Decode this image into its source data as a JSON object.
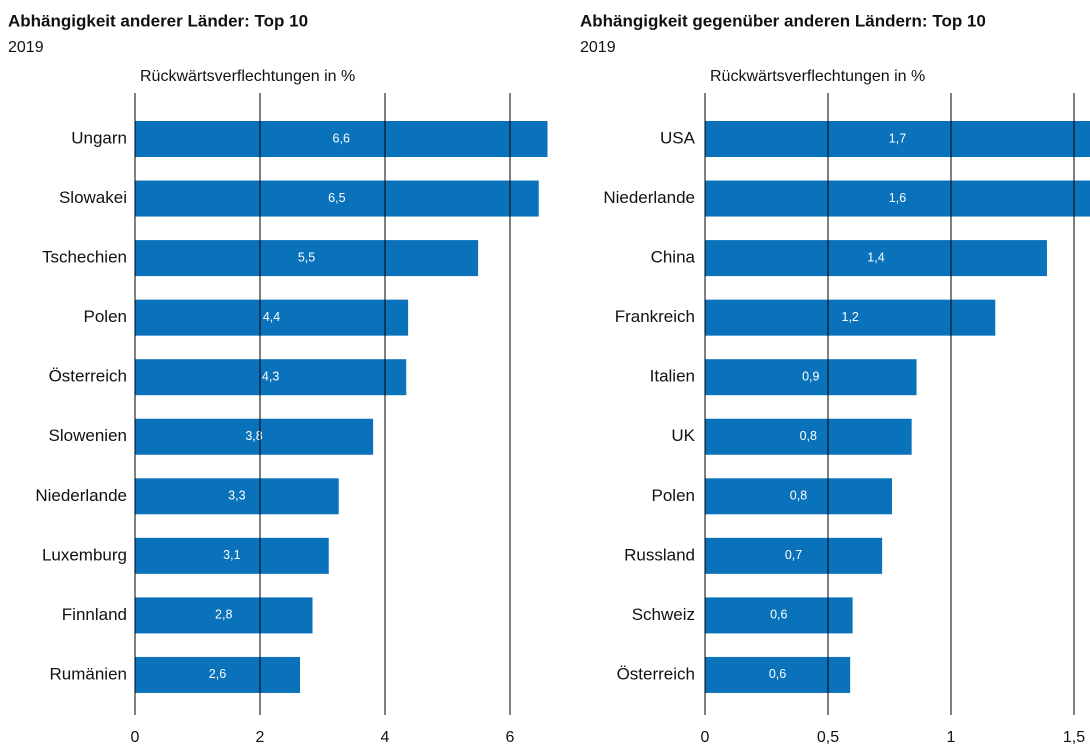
{
  "chart_data": [
    {
      "type": "bar",
      "title": "Abhängigkeit anderer Länder: Top 10",
      "subtitle": "2019",
      "x_label": "Rückwärtsverflechtungen in %",
      "categories": [
        "Ungarn",
        "Slowakei",
        "Tschechien",
        "Polen",
        "Österreich",
        "Slowenien",
        "Niederlande",
        "Luxemburg",
        "Finnland",
        "Rumänien"
      ],
      "values": [
        6.6,
        6.46,
        5.49,
        4.37,
        4.34,
        3.81,
        3.26,
        3.1,
        2.84,
        2.64
      ],
      "value_labels": [
        "6,6",
        "6,5",
        "5,5",
        "4,4",
        "4,3",
        "3,8",
        "3,3",
        "3,1",
        "2,8",
        "2,6"
      ],
      "color": "#0a72ba",
      "xlim": [
        0,
        7
      ],
      "xticks": [
        0,
        2,
        4,
        6
      ],
      "grid": true
    },
    {
      "type": "bar",
      "title": "Abhängigkeit gegenüber anderen Ländern: Top 10",
      "subtitle": "2019",
      "x_label": "Rückwärtsverflechtungen in %",
      "categories": [
        "USA",
        "Niederlande",
        "China",
        "Frankreich",
        "Italien",
        "UK",
        "Polen",
        "Russland",
        "Schweiz",
        "Österreich"
      ],
      "values": [
        1.7,
        1.6,
        1.39,
        1.18,
        0.86,
        0.84,
        0.76,
        0.72,
        0.6,
        0.59
      ],
      "value_labels": [
        "1,7",
        "1,6",
        "1,4",
        "1,2",
        "0,9",
        "0,8",
        "0,8",
        "0,7",
        "0,6",
        "0,6"
      ],
      "color": "#0a72ba",
      "xlim": [
        0,
        1.565
      ],
      "xticks": [
        0,
        {
          "value": 0.5,
          "label": "0,5"
        },
        1,
        {
          "value": 1.5,
          "label": "1,5"
        }
      ],
      "grid": true
    }
  ]
}
